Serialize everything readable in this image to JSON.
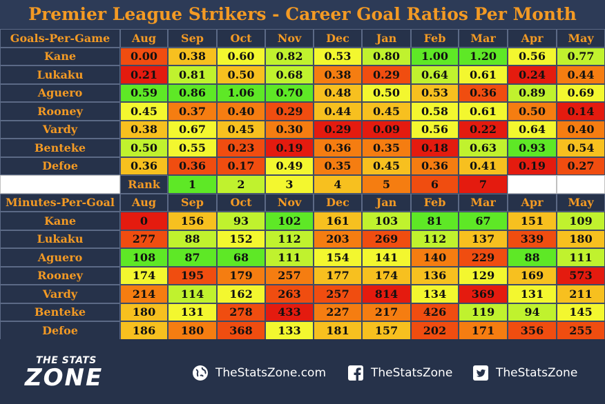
{
  "title": "Premier League Strikers - Career Goal Ratios Per Month",
  "chart_data": [
    {
      "type": "heatmap",
      "corner_label": "Goals-Per-Game",
      "columns": [
        "Aug",
        "Sep",
        "Oct",
        "Nov",
        "Dec",
        "Jan",
        "Feb",
        "Mar",
        "Apr",
        "May"
      ],
      "rows": [
        "Kane",
        "Lukaku",
        "Aguero",
        "Rooney",
        "Vardy",
        "Benteke",
        "Defoe"
      ],
      "values": [
        [
          "0.00",
          "0.38",
          "0.60",
          "0.82",
          "0.53",
          "0.80",
          "1.00",
          "1.20",
          "0.56",
          "0.77"
        ],
        [
          "0.21",
          "0.81",
          "0.50",
          "0.68",
          "0.38",
          "0.29",
          "0.64",
          "0.61",
          "0.24",
          "0.44"
        ],
        [
          "0.59",
          "0.86",
          "1.06",
          "0.70",
          "0.48",
          "0.50",
          "0.53",
          "0.36",
          "0.89",
          "0.69"
        ],
        [
          "0.45",
          "0.37",
          "0.40",
          "0.29",
          "0.44",
          "0.45",
          "0.58",
          "0.61",
          "0.50",
          "0.14"
        ],
        [
          "0.38",
          "0.67",
          "0.45",
          "0.30",
          "0.29",
          "0.09",
          "0.56",
          "0.22",
          "0.64",
          "0.40"
        ],
        [
          "0.50",
          "0.55",
          "0.23",
          "0.19",
          "0.36",
          "0.35",
          "0.18",
          "0.63",
          "0.93",
          "0.54"
        ],
        [
          "0.36",
          "0.36",
          "0.17",
          "0.49",
          "0.35",
          "0.45",
          "0.36",
          "0.41",
          "0.19",
          "0.27"
        ]
      ],
      "ranks": [
        [
          6,
          4,
          3,
          2,
          3,
          2,
          1,
          1,
          3,
          2
        ],
        [
          7,
          2,
          4,
          2,
          5,
          6,
          2,
          3,
          7,
          5
        ],
        [
          1,
          1,
          1,
          1,
          4,
          3,
          4,
          6,
          2,
          3
        ],
        [
          3,
          5,
          5,
          6,
          4,
          4,
          3,
          3,
          5,
          7
        ],
        [
          4,
          3,
          4,
          5,
          7,
          7,
          3,
          7,
          3,
          5
        ],
        [
          2,
          3,
          6,
          7,
          5,
          5,
          7,
          2,
          1,
          4
        ],
        [
          4,
          6,
          6,
          3,
          5,
          4,
          5,
          4,
          7,
          6
        ]
      ]
    },
    {
      "type": "heatmap",
      "corner_label": "Minutes-Per-Goal",
      "columns": [
        "Aug",
        "Sep",
        "Oct",
        "Nov",
        "Dec",
        "Jan",
        "Feb",
        "Mar",
        "Apr",
        "May"
      ],
      "rows": [
        "Kane",
        "Lukaku",
        "Aguero",
        "Rooney",
        "Vardy",
        "Benteke",
        "Defoe"
      ],
      "values": [
        [
          "0",
          "156",
          "93",
          "102",
          "161",
          "103",
          "81",
          "67",
          "151",
          "109"
        ],
        [
          "277",
          "88",
          "152",
          "112",
          "203",
          "269",
          "112",
          "137",
          "339",
          "180"
        ],
        [
          "108",
          "87",
          "68",
          "111",
          "154",
          "141",
          "140",
          "229",
          "88",
          "111"
        ],
        [
          "174",
          "195",
          "179",
          "257",
          "177",
          "174",
          "136",
          "129",
          "169",
          "573"
        ],
        [
          "214",
          "114",
          "162",
          "263",
          "257",
          "814",
          "134",
          "369",
          "131",
          "211"
        ],
        [
          "180",
          "131",
          "278",
          "433",
          "227",
          "217",
          "426",
          "119",
          "94",
          "145"
        ],
        [
          "186",
          "180",
          "368",
          "133",
          "181",
          "157",
          "202",
          "171",
          "356",
          "255"
        ]
      ],
      "ranks": [
        [
          7,
          4,
          2,
          1,
          4,
          2,
          1,
          1,
          4,
          2
        ],
        [
          6,
          2,
          3,
          2,
          5,
          6,
          2,
          4,
          6,
          4
        ],
        [
          1,
          1,
          1,
          2,
          3,
          3,
          5,
          6,
          1,
          2
        ],
        [
          3,
          6,
          5,
          5,
          4,
          4,
          4,
          3,
          4,
          7
        ],
        [
          5,
          2,
          3,
          6,
          6,
          7,
          3,
          7,
          3,
          4
        ],
        [
          4,
          3,
          6,
          7,
          5,
          5,
          6,
          2,
          2,
          3
        ],
        [
          4,
          5,
          6,
          3,
          4,
          4,
          6,
          5,
          6,
          6
        ]
      ]
    }
  ],
  "rank_legend": {
    "label": "Rank",
    "ranks": [
      "1",
      "2",
      "3",
      "4",
      "5",
      "6",
      "7"
    ]
  },
  "rank_colors": [
    "#5ee826",
    "#c0f22e",
    "#f3f72f",
    "#f7c01f",
    "#f57d11",
    "#f04d10",
    "#e41b0f"
  ],
  "colors": {
    "background": "#26324a",
    "header_text": "#f39a24",
    "grid_line": "#5c6a86"
  },
  "footer": {
    "brand_the": "THE STATS",
    "brand_zone": "ZONE",
    "website": "TheStatsZone.com",
    "facebook": "TheStatsZone",
    "twitter": "TheStatsZone",
    "website_icon": "globe-icon",
    "facebook_icon": "facebook-icon",
    "twitter_icon": "twitter-icon"
  }
}
